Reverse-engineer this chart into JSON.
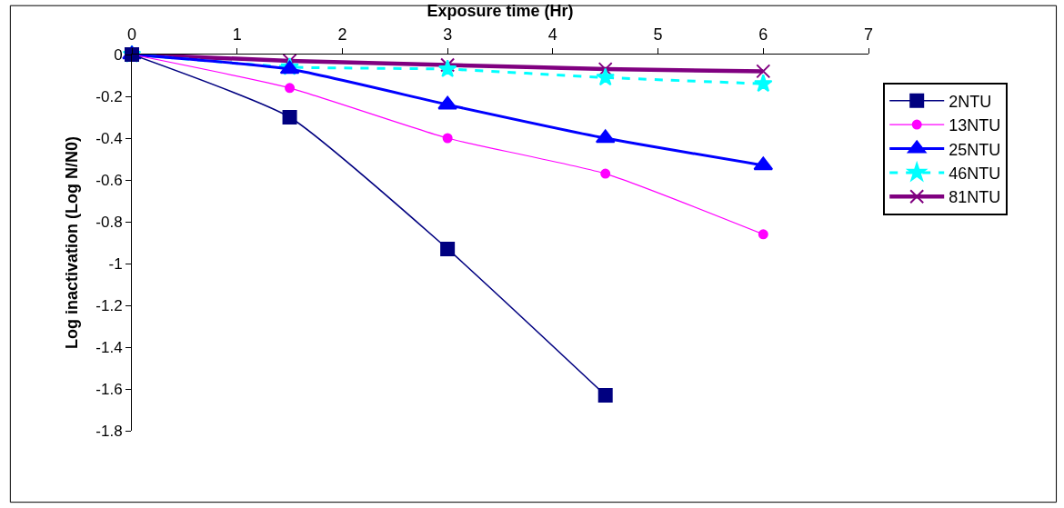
{
  "chart_data": {
    "type": "line",
    "xlabel": "Exposure time (Hr)",
    "ylabel": "Log inactivation (Log N/N0)",
    "x": [
      0,
      1.5,
      3,
      4.5,
      6
    ],
    "xlim": [
      0,
      7
    ],
    "xticks": [
      0,
      1,
      2,
      3,
      4,
      5,
      6,
      7
    ],
    "ylim": [
      -1.8,
      0
    ],
    "yticks": [
      0,
      -0.2,
      -0.4,
      -0.6,
      -0.8,
      -1,
      -1.2,
      -1.4,
      -1.6,
      -1.8
    ],
    "legend": "right",
    "series": [
      {
        "name": "2NTU",
        "color": "#000080",
        "marker": "square",
        "line_style": "solid",
        "values": [
          0,
          -0.3,
          -0.93,
          -1.63,
          null
        ]
      },
      {
        "name": "13NTU",
        "color": "#ff00ff",
        "marker": "circle",
        "line_style": "solid",
        "values": [
          0,
          -0.16,
          -0.4,
          -0.57,
          -0.86
        ]
      },
      {
        "name": "25NTU",
        "color": "#0000ff",
        "marker": "triangle",
        "line_style": "solid",
        "values": [
          0,
          -0.07,
          -0.24,
          -0.4,
          -0.53
        ]
      },
      {
        "name": "46NTU",
        "color": "#00ffff",
        "marker": "star",
        "line_style": "dashed",
        "values": [
          0,
          -0.06,
          -0.07,
          -0.11,
          -0.14
        ]
      },
      {
        "name": "81NTU",
        "color": "#800080",
        "marker": "cross",
        "line_style": "solid",
        "values": [
          0,
          -0.03,
          -0.05,
          -0.07,
          -0.08
        ]
      }
    ]
  }
}
